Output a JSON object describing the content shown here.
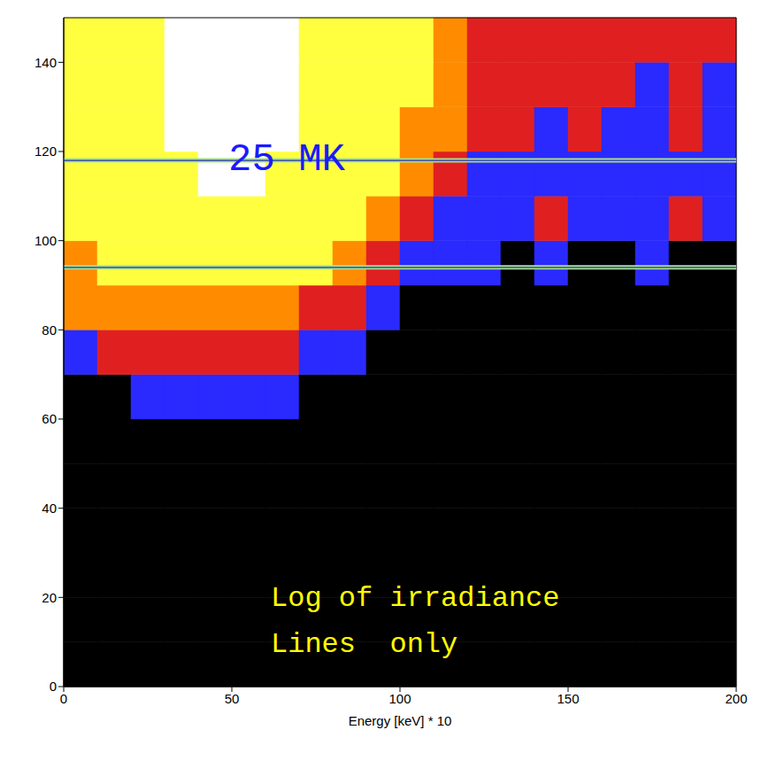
{
  "chart_data": {
    "type": "heatmap",
    "xlabel": "Energy [keV] * 10",
    "xlim": [
      0,
      200
    ],
    "xticks": [
      0,
      50,
      100,
      150,
      200
    ],
    "ylim": [
      0,
      150
    ],
    "yticks": [
      0,
      20,
      40,
      60,
      80,
      100,
      120,
      140
    ],
    "x_bins": [
      0,
      10,
      20,
      30,
      40,
      50,
      60,
      70,
      80,
      90,
      100,
      110,
      120,
      130,
      140,
      150,
      160,
      170,
      180,
      190,
      200
    ],
    "y_bins": [
      0,
      10,
      20,
      30,
      40,
      50,
      60,
      70,
      80,
      90,
      100,
      110,
      120,
      130,
      140,
      150
    ],
    "cells": [
      [
        0,
        0,
        0,
        0,
        0,
        0,
        0,
        0,
        0,
        0,
        0,
        0,
        0,
        0,
        0,
        0,
        0,
        0,
        0,
        0
      ],
      [
        0,
        0,
        0,
        0,
        0,
        0,
        0,
        0,
        0,
        0,
        0,
        0,
        0,
        0,
        0,
        0,
        0,
        0,
        0,
        0
      ],
      [
        0,
        0,
        0,
        0,
        0,
        0,
        0,
        0,
        0,
        0,
        0,
        0,
        0,
        0,
        0,
        0,
        0,
        0,
        0,
        0
      ],
      [
        0,
        0,
        0,
        0,
        0,
        0,
        0,
        0,
        0,
        0,
        0,
        0,
        0,
        0,
        0,
        0,
        0,
        0,
        0,
        0
      ],
      [
        0,
        0,
        0,
        0,
        0,
        0,
        0,
        0,
        0,
        0,
        0,
        0,
        0,
        0,
        0,
        0,
        0,
        0,
        0,
        0
      ],
      [
        0,
        0,
        0,
        0,
        0,
        0,
        0,
        0,
        0,
        0,
        0,
        0,
        0,
        0,
        0,
        0,
        0,
        0,
        0,
        0
      ],
      [
        0,
        0,
        1,
        1,
        1,
        1,
        1,
        0,
        0,
        0,
        0,
        0,
        0,
        0,
        0,
        0,
        0,
        0,
        0,
        0
      ],
      [
        1,
        2,
        2,
        2,
        2,
        2,
        2,
        1,
        1,
        0,
        0,
        0,
        0,
        0,
        0,
        0,
        0,
        0,
        0,
        0
      ],
      [
        3,
        3,
        3,
        3,
        3,
        3,
        3,
        2,
        2,
        1,
        0,
        0,
        0,
        0,
        0,
        0,
        0,
        0,
        0,
        0
      ],
      [
        3,
        4,
        4,
        4,
        4,
        4,
        4,
        4,
        3,
        2,
        1,
        1,
        1,
        0,
        1,
        0,
        0,
        1,
        0,
        0
      ],
      [
        4,
        4,
        4,
        4,
        4,
        4,
        4,
        4,
        4,
        3,
        2,
        1,
        1,
        1,
        2,
        1,
        1,
        1,
        2,
        1
      ],
      [
        4,
        4,
        4,
        4,
        5,
        5,
        4,
        4,
        4,
        4,
        3,
        2,
        1,
        1,
        1,
        1,
        1,
        1,
        1,
        1
      ],
      [
        4,
        4,
        4,
        5,
        5,
        5,
        5,
        4,
        4,
        4,
        3,
        3,
        2,
        2,
        1,
        2,
        1,
        1,
        2,
        1
      ],
      [
        4,
        4,
        4,
        5,
        5,
        5,
        5,
        4,
        4,
        4,
        4,
        3,
        2,
        2,
        2,
        2,
        2,
        1,
        2,
        1
      ],
      [
        4,
        4,
        4,
        5,
        5,
        5,
        5,
        4,
        4,
        4,
        4,
        3,
        2,
        2,
        2,
        2,
        2,
        2,
        2,
        2
      ]
    ],
    "color_range": [
      0,
      5
    ],
    "colors": [
      "#000000",
      "#2a2aff",
      "#e02020",
      "#ff8c00",
      "#ffff40",
      "#ffffff"
    ],
    "reference_lines": [
      94,
      118
    ],
    "annotations": [
      "25 MK",
      "Log of irradiance",
      "Lines  only"
    ]
  }
}
